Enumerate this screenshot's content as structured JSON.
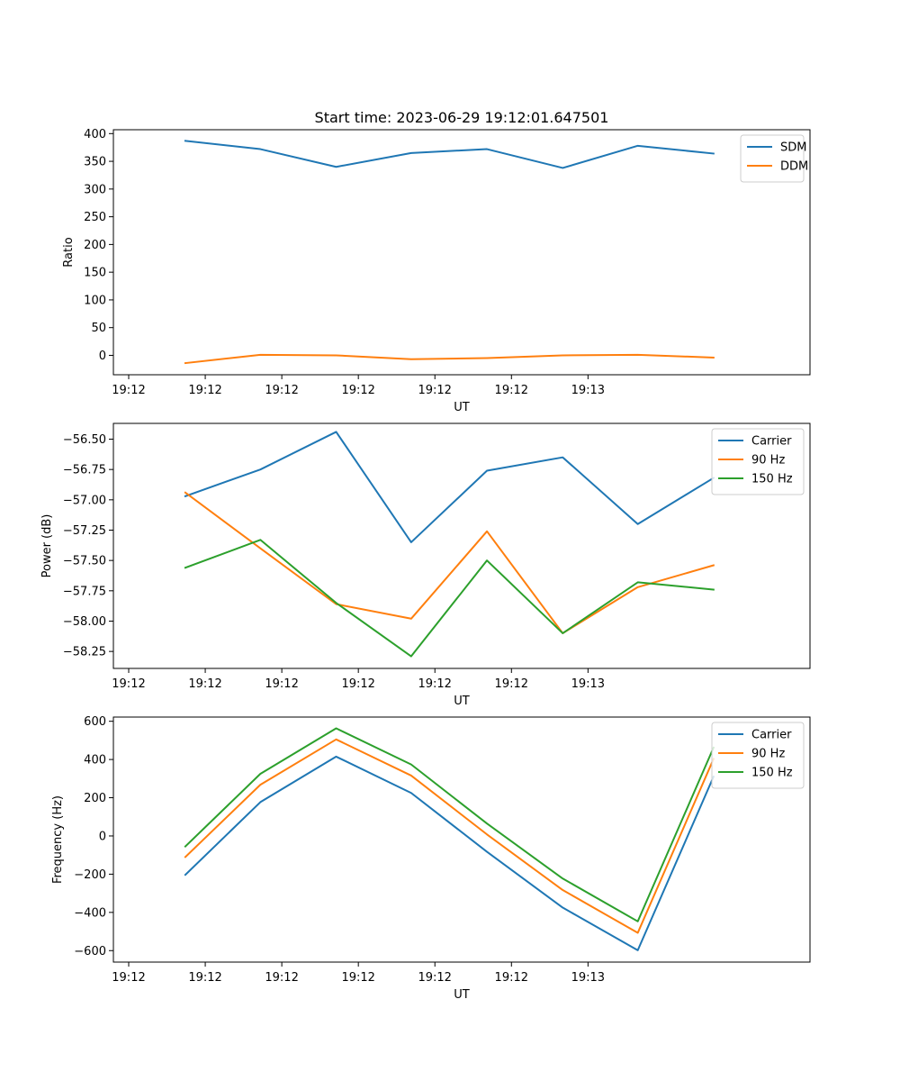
{
  "figure": {
    "title": "Start time: 2023-06-29 19:12:01.647501"
  },
  "chart_data": [
    {
      "type": "line",
      "title": "Start time: 2023-06-29 19:12:01.647501",
      "xlabel": "UT",
      "ylabel": "Ratio",
      "x_ticks": [
        "19:12",
        "19:12",
        "19:12",
        "19:12",
        "19:12",
        "19:12",
        "19:13"
      ],
      "y_ticks": [
        0,
        50,
        100,
        150,
        200,
        250,
        300,
        350,
        400
      ],
      "xlim": [
        -0.2,
        8.9
      ],
      "ylim": [
        -35,
        407
      ],
      "x": [
        0.74,
        1.72,
        2.71,
        3.69,
        4.68,
        5.67,
        6.65,
        7.64
      ],
      "series": [
        {
          "name": "SDM",
          "color": "#1f77b4",
          "values": [
            387,
            372,
            340,
            365,
            372,
            338,
            378,
            364
          ]
        },
        {
          "name": "DDM",
          "color": "#ff7f0e",
          "values": [
            -14,
            1,
            0,
            -7,
            -5,
            0,
            1,
            -4
          ]
        }
      ],
      "legend": "top-right",
      "grid": false
    },
    {
      "type": "line",
      "xlabel": "UT",
      "ylabel": "Power (dB)",
      "x_ticks": [
        "19:12",
        "19:12",
        "19:12",
        "19:12",
        "19:12",
        "19:12",
        "19:13"
      ],
      "y_ticks": [
        -58.25,
        -58.0,
        -57.75,
        -57.5,
        -57.25,
        -57.0,
        -56.75,
        -56.5
      ],
      "y_tick_labels": [
        "−58.25",
        "−58.00",
        "−57.75",
        "−57.50",
        "−57.25",
        "−57.00",
        "−56.75",
        "−56.50"
      ],
      "xlim": [
        -0.2,
        8.9
      ],
      "ylim": [
        -58.39,
        -56.37
      ],
      "x": [
        0.74,
        1.72,
        2.71,
        3.69,
        4.68,
        5.67,
        6.65,
        7.64
      ],
      "series": [
        {
          "name": "Carrier",
          "color": "#1f77b4",
          "values": [
            -56.97,
            -56.75,
            -56.44,
            -57.35,
            -56.76,
            -56.65,
            -57.2,
            -56.82
          ]
        },
        {
          "name": "90 Hz",
          "color": "#ff7f0e",
          "values": [
            -56.94,
            -57.4,
            -57.86,
            -57.98,
            -57.26,
            -58.1,
            -57.72,
            -57.54
          ]
        },
        {
          "name": "150 Hz",
          "color": "#2ca02c",
          "values": [
            -57.56,
            -57.33,
            -57.85,
            -58.29,
            -57.5,
            -58.1,
            -57.68,
            -57.74
          ]
        }
      ],
      "legend": "top-right",
      "grid": false
    },
    {
      "type": "line",
      "xlabel": "UT",
      "ylabel": "Frequency (Hz)",
      "x_ticks": [
        "19:12",
        "19:12",
        "19:12",
        "19:12",
        "19:12",
        "19:12",
        "19:13"
      ],
      "y_ticks": [
        -600,
        -400,
        -200,
        0,
        200,
        400,
        600
      ],
      "y_tick_labels": [
        "−600",
        "−400",
        "−200",
        "0",
        "200",
        "400",
        "600"
      ],
      "xlim": [
        -0.2,
        8.9
      ],
      "ylim": [
        -660,
        622
      ],
      "x": [
        0.74,
        1.72,
        2.71,
        3.69,
        4.68,
        5.67,
        6.65,
        7.64
      ],
      "series": [
        {
          "name": "Carrier",
          "color": "#1f77b4",
          "values": [
            -203,
            177,
            415,
            225,
            -83,
            -375,
            -598,
            310
          ]
        },
        {
          "name": "90 Hz",
          "color": "#ff7f0e",
          "values": [
            -110,
            268,
            505,
            316,
            8,
            -283,
            -507,
            403
          ]
        },
        {
          "name": "150 Hz",
          "color": "#2ca02c",
          "values": [
            -55,
            325,
            563,
            374,
            65,
            -223,
            -447,
            462
          ]
        }
      ],
      "legend": "top-right",
      "grid": false
    }
  ]
}
